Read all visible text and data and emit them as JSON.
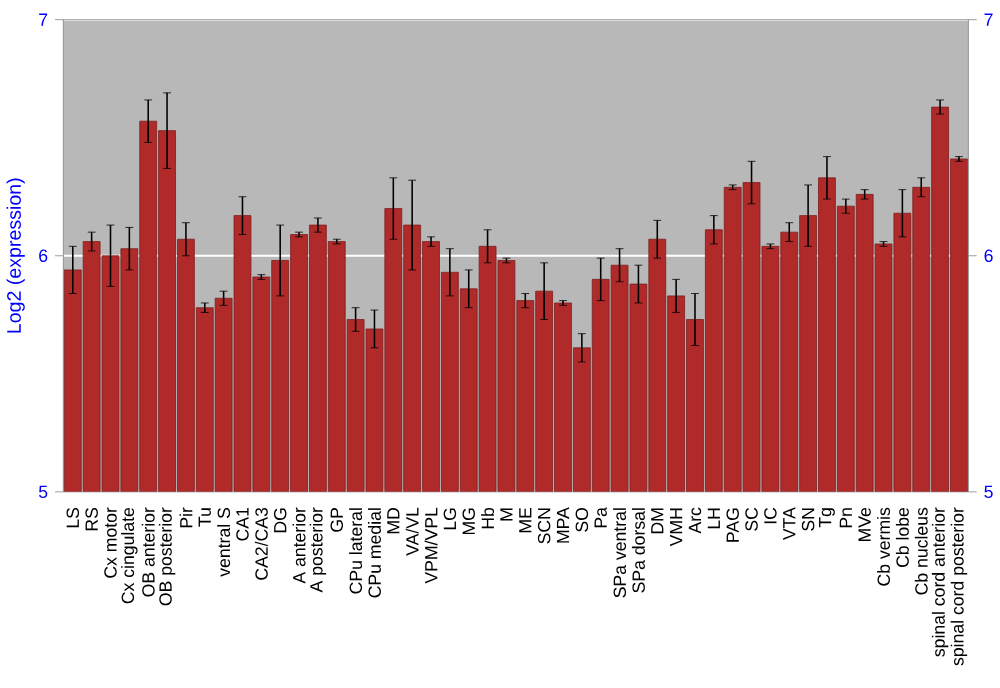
{
  "chart_data": {
    "type": "bar",
    "ylabel": "Log2 (expression)",
    "categories": [
      "LS",
      "RS",
      "Cx motor",
      "Cx cingulate",
      "OB anterior",
      "OB posterior",
      "Pir",
      "Tu",
      "ventral S",
      "CA1",
      "CA2/CA3",
      "DG",
      "A anterior",
      "A posterior",
      "GP",
      "CPu lateral",
      "CPu medial",
      "MD",
      "VA/VL",
      "VPM/VPL",
      "LG",
      "MG",
      "Hb",
      "M",
      "ME",
      "SCN",
      "MPA",
      "SO",
      "Pa",
      "SPa ventral",
      "SPa dorsal",
      "DM",
      "VMH",
      "Arc",
      "LH",
      "PAG",
      "SC",
      "IC",
      "VTA",
      "SN",
      "Tg",
      "Pn",
      "MVe",
      "Cb vermis",
      "Cb lobe",
      "Cb nucleus",
      "spinal cord anterior",
      "spinal cord posterior"
    ],
    "values": [
      5.94,
      6.06,
      6.0,
      6.03,
      6.57,
      6.53,
      6.07,
      5.78,
      5.82,
      6.17,
      5.91,
      5.98,
      6.09,
      6.13,
      6.06,
      5.73,
      5.69,
      6.2,
      6.13,
      6.06,
      5.93,
      5.86,
      6.04,
      5.98,
      5.81,
      5.85,
      5.8,
      5.61,
      5.9,
      5.96,
      5.88,
      6.07,
      5.83,
      5.73,
      6.11,
      6.29,
      6.31,
      6.04,
      6.1,
      6.17,
      6.33,
      6.21,
      6.26,
      6.05,
      6.18,
      6.29,
      6.63,
      6.41
    ],
    "errors": [
      0.1,
      0.04,
      0.13,
      0.09,
      0.09,
      0.16,
      0.07,
      0.02,
      0.03,
      0.08,
      0.01,
      0.15,
      0.01,
      0.03,
      0.01,
      0.05,
      0.08,
      0.13,
      0.19,
      0.02,
      0.1,
      0.08,
      0.07,
      0.01,
      0.03,
      0.12,
      0.01,
      0.06,
      0.09,
      0.07,
      0.08,
      0.08,
      0.07,
      0.11,
      0.06,
      0.01,
      0.09,
      0.01,
      0.04,
      0.13,
      0.09,
      0.03,
      0.02,
      0.01,
      0.1,
      0.04,
      0.03,
      0.01
    ],
    "color": "#b02a2a",
    "ylim": [
      5,
      7
    ],
    "yticks": [
      5,
      6,
      7
    ],
    "y2lim": [
      5,
      7
    ],
    "y2ticks": [
      5,
      6,
      7
    ],
    "grid": "y"
  }
}
